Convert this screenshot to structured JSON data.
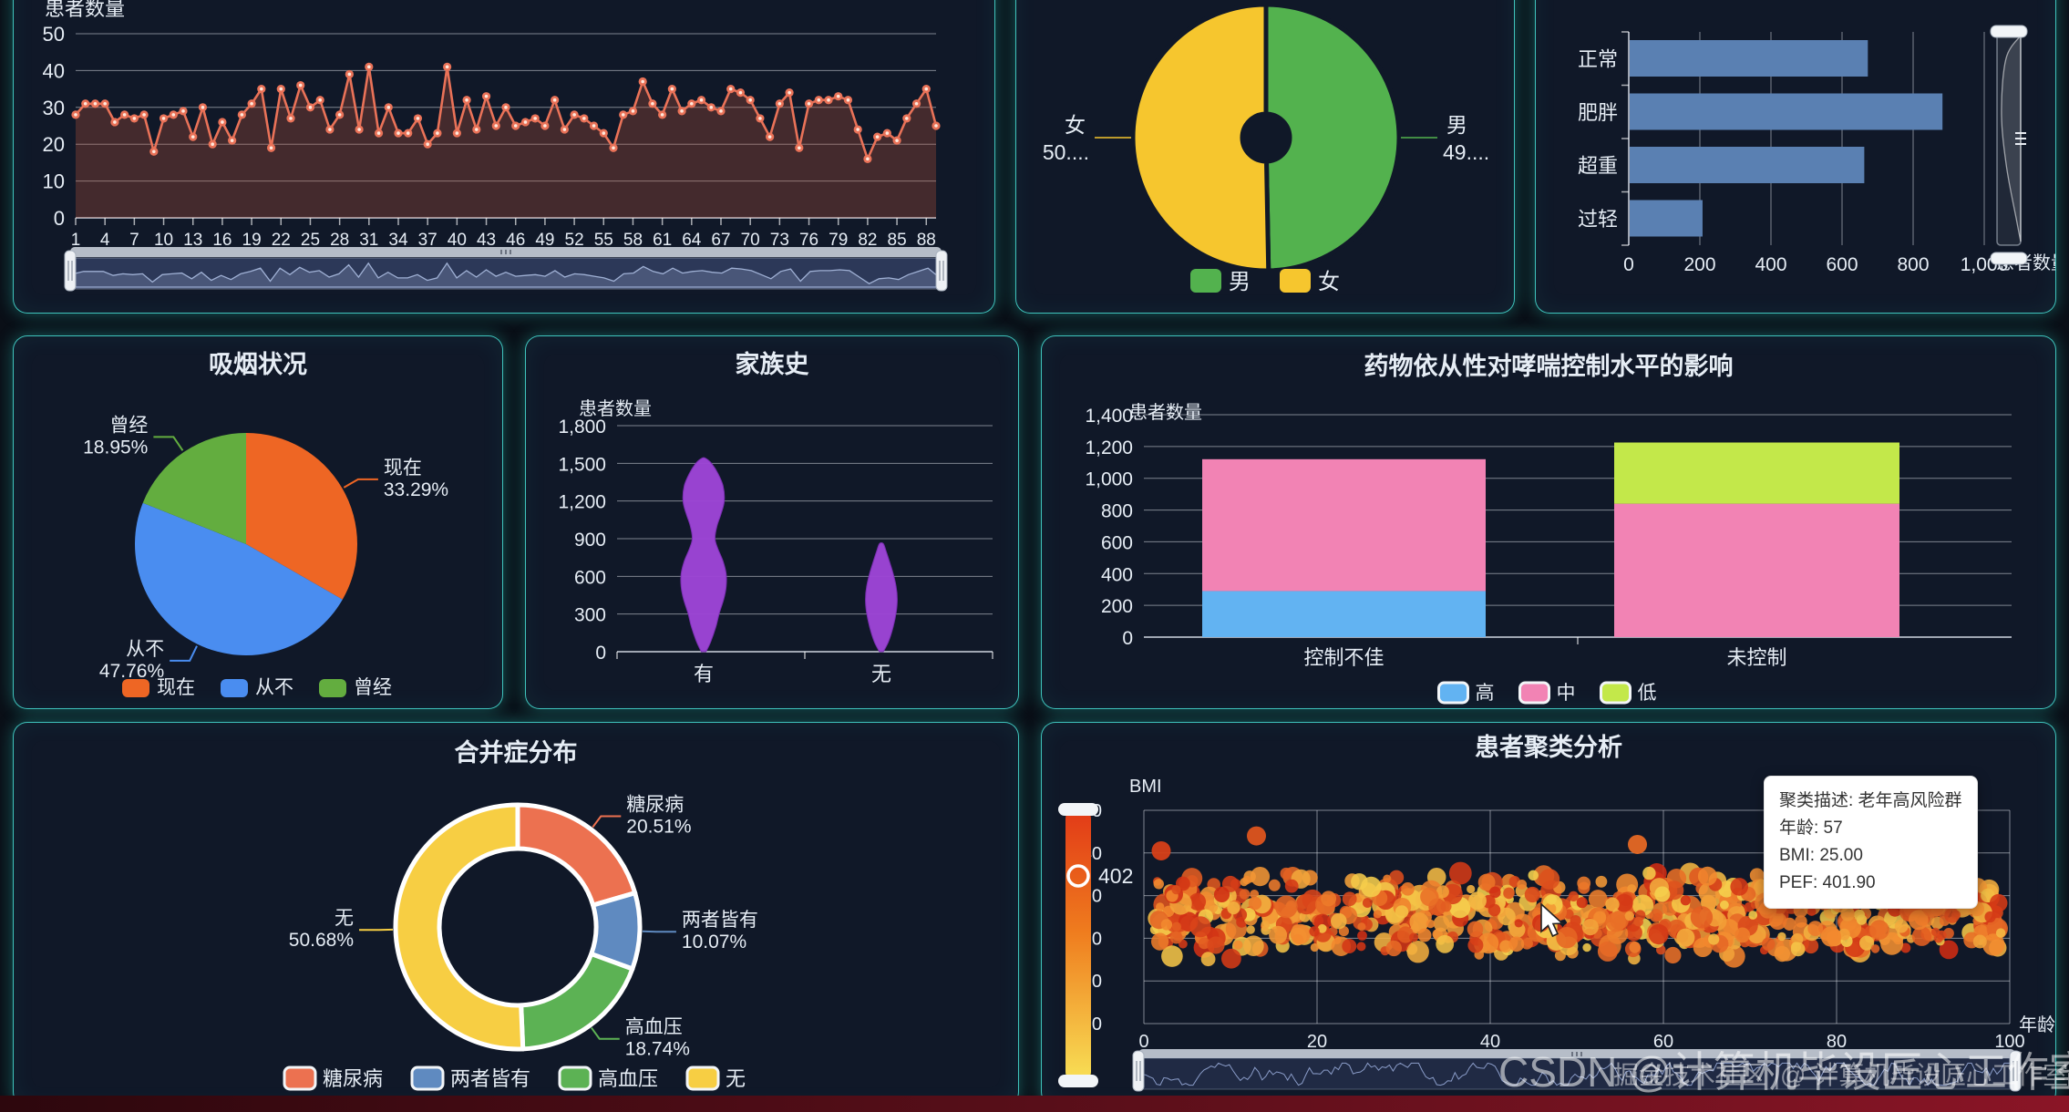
{
  "page": {
    "watermark_big": "CSDN @计算机毕设匠心工作室",
    "watermark_small": "掘金技术社区 |@ 计算机毕设匠心工作室"
  },
  "tooltip": {
    "line1": "聚类描述: 老年高风险群",
    "line2": "年龄: 57",
    "line3": "BMI: 25.00",
    "line4": "PEF: 401.90"
  },
  "chart_data": [
    {
      "id": "patient-trend",
      "type": "line",
      "title": "",
      "ylabel": "患者数量",
      "ylim": [
        0,
        50
      ],
      "yticks": [
        0,
        10,
        20,
        30,
        40,
        50
      ],
      "xtick_labels": [
        1,
        4,
        7,
        10,
        13,
        16,
        19,
        22,
        25,
        28,
        31,
        34,
        37,
        40,
        43,
        46,
        49,
        52,
        55,
        58,
        61,
        64,
        67,
        70,
        73,
        76,
        79,
        82,
        85,
        88
      ],
      "line_color": "#e97258",
      "area_color": "rgba(190,85,60,0.30)",
      "values": [
        28,
        31,
        31,
        31,
        26,
        28,
        27,
        28,
        18,
        27,
        28,
        29,
        22,
        30,
        20,
        26,
        21,
        28,
        31,
        35,
        19,
        35,
        27,
        36,
        30,
        32,
        24,
        28,
        39,
        24,
        41,
        23,
        30,
        23,
        23,
        27,
        20,
        23,
        41,
        23,
        32,
        24,
        33,
        25,
        30,
        25,
        26,
        27,
        25,
        32,
        24,
        28,
        27,
        25,
        23,
        19,
        28,
        29,
        37,
        31,
        28,
        35,
        29,
        31,
        32,
        30,
        29,
        35,
        34,
        32,
        27,
        22,
        31,
        34,
        19,
        31,
        32,
        32,
        33,
        32,
        24,
        16,
        22,
        23,
        21,
        27,
        31,
        35,
        25
      ],
      "has_datazoom": true
    },
    {
      "id": "gender",
      "type": "gender_pie",
      "title": "",
      "slices": [
        {
          "name": "男",
          "label_lines": [
            "男",
            "49...."
          ],
          "value": 49.7,
          "color": "#53b24e"
        },
        {
          "name": "女",
          "label_lines": [
            "女",
            "50...."
          ],
          "value": 50.3,
          "color": "#f6c62e"
        }
      ],
      "legend": [
        {
          "label": "男",
          "color": "#53b24e"
        },
        {
          "label": "女",
          "color": "#f6c62e"
        }
      ]
    },
    {
      "id": "bmi-category",
      "type": "hbar",
      "title": "",
      "categories": [
        "正常",
        "肥胖",
        "超重",
        "过轻"
      ],
      "values": [
        670,
        880,
        660,
        205
      ],
      "xlim": [
        0,
        1000
      ],
      "xtick_labels": [
        "0",
        "200",
        "400",
        "600",
        "800",
        "1,000"
      ],
      "bar_color": "#5a80b2",
      "axis_name": "患者数量"
    },
    {
      "id": "smoking",
      "type": "pie",
      "title": "吸烟状况",
      "slices": [
        {
          "name": "现在",
          "pct": "33.29%",
          "value": 33.29,
          "color": "#ee6624"
        },
        {
          "name": "从不",
          "pct": "47.76%",
          "value": 47.76,
          "color": "#4a8df0"
        },
        {
          "name": "曾经",
          "pct": "18.95%",
          "value": 18.95,
          "color": "#63ad3f"
        }
      ],
      "legend": [
        {
          "label": "现在",
          "color": "#ee6624"
        },
        {
          "label": "从不",
          "color": "#4a8df0"
        },
        {
          "label": "曾经",
          "color": "#63ad3f"
        }
      ]
    },
    {
      "id": "family-history",
      "type": "violin",
      "title": "家族史",
      "ylabel": "患者数量",
      "ylim": [
        0,
        1800
      ],
      "ytick_labels": [
        "0",
        "300",
        "600",
        "900",
        "1,200",
        "1,500",
        "1,800"
      ],
      "color": "#9d45d6",
      "categories": [
        "有",
        "无"
      ],
      "violins": [
        {
          "max": 1540,
          "profile": [
            [
              0,
              0.1
            ],
            [
              80,
              0.3
            ],
            [
              200,
              0.52
            ],
            [
              300,
              0.65
            ],
            [
              420,
              0.85
            ],
            [
              520,
              0.95
            ],
            [
              620,
              0.95
            ],
            [
              720,
              0.82
            ],
            [
              820,
              0.6
            ],
            [
              900,
              0.48
            ],
            [
              1000,
              0.56
            ],
            [
              1100,
              0.74
            ],
            [
              1200,
              0.87
            ],
            [
              1320,
              0.82
            ],
            [
              1420,
              0.6
            ],
            [
              1500,
              0.33
            ],
            [
              1540,
              0.08
            ]
          ]
        },
        {
          "max": 880,
          "profile": [
            [
              0,
              0.08
            ],
            [
              80,
              0.3
            ],
            [
              200,
              0.5
            ],
            [
              320,
              0.63
            ],
            [
              420,
              0.67
            ],
            [
              520,
              0.62
            ],
            [
              620,
              0.5
            ],
            [
              720,
              0.34
            ],
            [
              800,
              0.2
            ],
            [
              860,
              0.08
            ]
          ]
        }
      ]
    },
    {
      "id": "adherence",
      "type": "stackbar",
      "title": "药物依从性对哮喘控制水平的影响",
      "ylabel": "患者数量",
      "ylim": [
        0,
        1400
      ],
      "ytick_labels": [
        "0",
        "200",
        "400",
        "600",
        "800",
        "1,000",
        "1,200",
        "1,400"
      ],
      "categories": [
        "控制不佳",
        "未控制"
      ],
      "series": [
        {
          "name": "高",
          "color": "#62b3f2",
          "values": [
            290,
            0
          ]
        },
        {
          "name": "中",
          "color": "#f283b4",
          "values": [
            830,
            840
          ]
        },
        {
          "name": "低",
          "color": "#c3e84a",
          "values": [
            0,
            385
          ]
        }
      ],
      "legend": [
        {
          "label": "高",
          "color": "#62b3f2"
        },
        {
          "label": "中",
          "color": "#f283b4"
        },
        {
          "label": "低",
          "color": "#c3e84a"
        }
      ]
    },
    {
      "id": "comorbidity",
      "type": "donut",
      "title": "合并症分布",
      "slices": [
        {
          "name": "糖尿病",
          "pct": "20.51%",
          "value": 20.51,
          "color": "#ec7150"
        },
        {
          "name": "两者皆有",
          "pct": "10.07%",
          "value": 10.07,
          "color": "#5f8ac0"
        },
        {
          "name": "高血压",
          "pct": "18.74%",
          "value": 18.74,
          "color": "#5cb254"
        },
        {
          "name": "无",
          "pct": "50.68%",
          "value": 50.68,
          "color": "#f7ce43"
        }
      ],
      "legend": [
        {
          "label": "糖尿病",
          "color": "#ec7150"
        },
        {
          "label": "两者皆有",
          "color": "#5f8ac0"
        },
        {
          "label": "高血压",
          "color": "#5cb254"
        },
        {
          "label": "无",
          "color": "#f7ce43"
        }
      ]
    },
    {
      "id": "cluster",
      "type": "scatter",
      "title": "患者聚类分析",
      "ylabel": "BMI",
      "xlabel": "年龄",
      "ylim": [
        0,
        50
      ],
      "ytick_labels": [
        "0",
        "10",
        "20",
        "30",
        "40",
        "50"
      ],
      "xlim": [
        0,
        100
      ],
      "xtick_labels": [
        "0",
        "20",
        "40",
        "60",
        "80",
        "100"
      ],
      "visualmap": {
        "indicator_label": "402",
        "top_color": "#e23a17",
        "mid_color": "#ef7c1e",
        "bottom_color": "#f8df55"
      },
      "cloud": {
        "seed": 7,
        "count": 760,
        "x_min": 1,
        "x_max": 99,
        "y_min": 15,
        "y_max": 36
      },
      "outliers": [
        [
          2,
          40.5
        ],
        [
          13,
          44
        ],
        [
          57,
          42
        ],
        [
          75,
          43
        ],
        [
          90,
          41
        ]
      ],
      "has_datazoom": true
    }
  ]
}
